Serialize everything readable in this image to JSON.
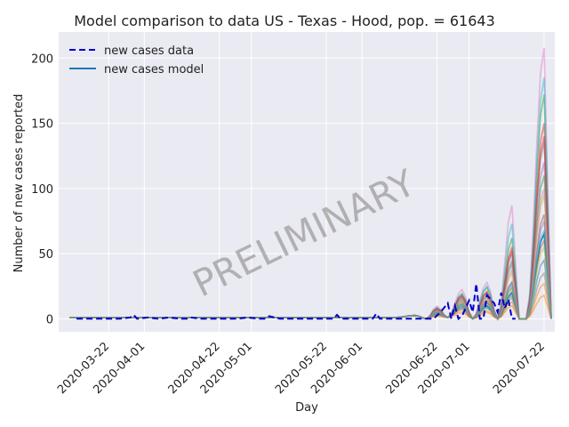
{
  "chart_data": {
    "type": "line",
    "title": "Model comparison to data US - Texas - Hood, pop. = 61643",
    "xlabel": "Day",
    "ylabel": "Number of new cases reported",
    "x_range": [
      "2020-03-08",
      "2020-07-25"
    ],
    "ylim": [
      -10,
      220
    ],
    "y_ticks": [
      0,
      50,
      100,
      150,
      200
    ],
    "x_tick_labels": [
      "2020-03-22",
      "2020-04-01",
      "2020-04-22",
      "2020-05-01",
      "2020-05-22",
      "2020-06-01",
      "2020-06-22",
      "2020-07-01",
      "2020-07-22"
    ],
    "grid": true,
    "legend": {
      "position": "top-left",
      "entries": [
        {
          "label": "new cases data",
          "style": "dashed",
          "color": "#0000cc"
        },
        {
          "label": "new cases model",
          "style": "solid",
          "color": "#1f77b4"
        }
      ]
    },
    "watermark": "PRELIMINARY",
    "series": [
      {
        "name": "new cases data",
        "color": "#0000cc",
        "x": [
          "2020-03-13",
          "2020-03-16",
          "2020-03-19",
          "2020-03-22",
          "2020-03-25",
          "2020-03-28",
          "2020-03-29",
          "2020-03-30",
          "2020-04-02",
          "2020-04-05",
          "2020-04-08",
          "2020-04-11",
          "2020-04-13",
          "2020-04-14",
          "2020-04-17",
          "2020-04-20",
          "2020-04-24",
          "2020-04-27",
          "2020-04-30",
          "2020-05-03",
          "2020-05-05",
          "2020-05-06",
          "2020-05-09",
          "2020-05-12",
          "2020-05-15",
          "2020-05-18",
          "2020-05-21",
          "2020-05-24",
          "2020-05-25",
          "2020-05-26",
          "2020-05-29",
          "2020-06-01",
          "2020-06-04",
          "2020-06-05",
          "2020-06-06",
          "2020-06-09",
          "2020-06-12",
          "2020-06-15",
          "2020-06-18",
          "2020-06-21",
          "2020-06-23",
          "2020-06-25",
          "2020-06-26",
          "2020-06-27",
          "2020-06-28",
          "2020-06-29",
          "2020-07-01",
          "2020-07-02",
          "2020-07-03",
          "2020-07-04",
          "2020-07-05",
          "2020-07-06",
          "2020-07-08",
          "2020-07-09",
          "2020-07-10",
          "2020-07-11",
          "2020-07-12",
          "2020-07-13",
          "2020-07-14"
        ],
        "values": [
          0,
          0,
          0,
          0,
          0,
          1,
          3,
          0,
          1,
          0,
          1,
          0,
          0,
          1,
          0,
          0,
          0,
          0,
          1,
          0,
          0,
          2,
          0,
          0,
          0,
          0,
          0,
          0,
          3,
          0,
          0,
          0,
          0,
          4,
          0,
          0,
          0,
          0,
          0,
          0,
          5,
          12,
          0,
          10,
          0,
          2,
          14,
          5,
          27,
          0,
          0,
          18,
          12,
          5,
          20,
          8,
          15,
          0,
          0
        ]
      },
      {
        "name": "new cases model",
        "color": "#1f77b4",
        "peak": 65,
        "w3": 20,
        "w2": 10,
        "w1": 6
      },
      {
        "name": "",
        "color": "#ff7f0e",
        "peak": 27,
        "w3": 13,
        "w2": 6,
        "w1": 4
      },
      {
        "name": "",
        "color": "#2ca02c",
        "peak": 172,
        "w3": 62,
        "w2": 24,
        "w1": 12
      },
      {
        "name": "",
        "color": "#d62728",
        "peak": 150,
        "w3": 55,
        "w2": 21,
        "w1": 11
      },
      {
        "name": "",
        "color": "#9467bd",
        "peak": 120,
        "w3": 45,
        "w2": 18,
        "w1": 10
      },
      {
        "name": "",
        "color": "#8c564b",
        "peak": 80,
        "w3": 28,
        "w2": 14,
        "w1": 8
      },
      {
        "name": "",
        "color": "#e377c2",
        "peak": 208,
        "w3": 87,
        "w2": 28,
        "w1": 14
      },
      {
        "name": "",
        "color": "#7f7f7f",
        "peak": 135,
        "w3": 50,
        "w2": 20,
        "w1": 10
      },
      {
        "name": "",
        "color": "#bcbd22",
        "peak": 95,
        "w3": 35,
        "w2": 15,
        "w1": 8
      },
      {
        "name": "",
        "color": "#17becf",
        "peak": 185,
        "w3": 73,
        "w2": 25,
        "w1": 12
      },
      {
        "name": "",
        "color": "#1f77b4",
        "peak": 45,
        "w3": 18,
        "w2": 9,
        "w1": 5
      },
      {
        "name": "",
        "color": "#ff7f0e",
        "peak": 18,
        "w3": 10,
        "w2": 5,
        "w1": 3
      },
      {
        "name": "",
        "color": "#2ca02c",
        "peak": 110,
        "w3": 42,
        "w2": 17,
        "w1": 9
      },
      {
        "name": "",
        "color": "#d62728",
        "peak": 140,
        "w3": 52,
        "w2": 20,
        "w1": 11
      },
      {
        "name": "",
        "color": "#9467bd",
        "peak": 75,
        "w3": 28,
        "w2": 13,
        "w1": 7
      },
      {
        "name": "",
        "color": "#8c564b",
        "peak": 60,
        "w3": 24,
        "w2": 12,
        "w1": 7
      },
      {
        "name": "",
        "color": "#e377c2",
        "peak": 100,
        "w3": 38,
        "w2": 16,
        "w1": 9
      },
      {
        "name": "",
        "color": "#bcbd22",
        "peak": 55,
        "w3": 22,
        "w2": 11,
        "w1": 6
      },
      {
        "name": "",
        "color": "#17becf",
        "peak": 68,
        "w3": 26,
        "w2": 12,
        "w1": 7
      },
      {
        "name": "",
        "color": "#7f7f7f",
        "peak": 35,
        "w3": 16,
        "w2": 8,
        "w1": 5
      }
    ]
  }
}
